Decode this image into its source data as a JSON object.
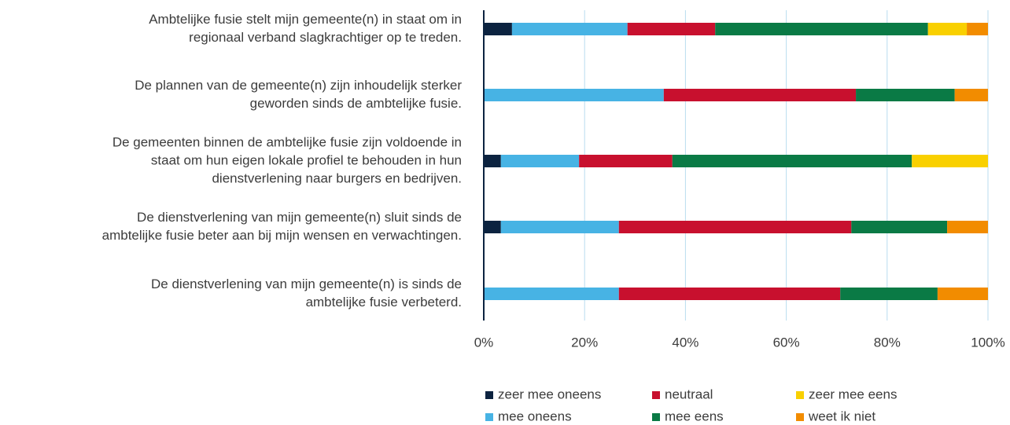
{
  "chart_data": {
    "type": "stacked-bar-horizontal",
    "categories": [
      [
        "Ambtelijke fusie stelt mijn gemeente(n) in staat om in",
        "regionaal verband slagkrachtiger op te treden."
      ],
      [
        "De plannen van de gemeente(n) zijn inhoudelijk sterker",
        "geworden sinds de ambtelijke fusie."
      ],
      [
        "De gemeenten binnen de ambtelijke fusie zijn voldoende in",
        "staat om hun eigen lokale profiel te behouden in hun",
        "dienstverlening naar burgers en bedrijven."
      ],
      [
        "De dienstverlening van mijn gemeente(n) sluit sinds de",
        "ambtelijke fusie beter aan bij mijn wensen en verwachtingen."
      ],
      [
        "De dienstverlening van mijn gemeente(n) is sinds de",
        "ambtelijke fusie verbeterd."
      ]
    ],
    "series": [
      {
        "name": "zeer mee oneens",
        "color": "#0c2340",
        "values": [
          5.6,
          0,
          3.4,
          3.4,
          0
        ]
      },
      {
        "name": "mee oneens",
        "color": "#47b3e4",
        "values": [
          22.9,
          35.7,
          15.5,
          23.4,
          26.8
        ]
      },
      {
        "name": "neutraal",
        "color": "#c8102e",
        "values": [
          17.4,
          38.1,
          18.5,
          46.1,
          43.9
        ]
      },
      {
        "name": "mee eens",
        "color": "#0a7a45",
        "values": [
          42.2,
          19.6,
          47.5,
          19.0,
          19.3
        ]
      },
      {
        "name": "zeer mee eens",
        "color": "#f9d000",
        "values": [
          7.7,
          0,
          15.1,
          0,
          0
        ]
      },
      {
        "name": "weet ik niet",
        "color": "#f28c00",
        "values": [
          4.2,
          6.6,
          0,
          8.1,
          10.0
        ]
      }
    ],
    "xlim": [
      0,
      100
    ],
    "xticks": [
      {
        "value": 0,
        "label": "0%"
      },
      {
        "value": 20,
        "label": "20%"
      },
      {
        "value": 40,
        "label": "40%"
      },
      {
        "value": 60,
        "label": "60%"
      },
      {
        "value": 80,
        "label": "80%"
      },
      {
        "value": 100,
        "label": "100%"
      }
    ],
    "grid": true,
    "legend": "bottom"
  }
}
